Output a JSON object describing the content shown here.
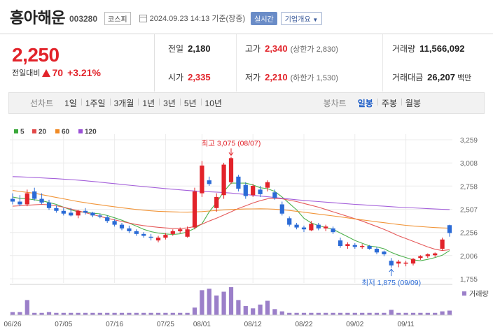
{
  "header": {
    "stock_name": "흥아해운",
    "stock_code": "003280",
    "market": "코스피",
    "datetime": "2024.09.23 14:13 기준(장중)",
    "realtime_label": "실시간",
    "company_info_label": "기업개요"
  },
  "price": {
    "current": "2,250",
    "prev_label": "전일대비",
    "change": "70",
    "change_pct": "+3.21%"
  },
  "stats": {
    "prev_close_label": "전일",
    "prev_close": "2,180",
    "high_label": "고가",
    "high": "2,340",
    "upper_limit": "(상한가 2,830)",
    "volume_label": "거래량",
    "volume": "11,566,092",
    "open_label": "시가",
    "open": "2,335",
    "low_label": "저가",
    "low": "2,210",
    "lower_limit": "(하한가 1,530)",
    "amount_label": "거래대금",
    "amount": "26,207",
    "amount_unit": "백만"
  },
  "period_tabs": {
    "line_label": "선차트",
    "line_items": [
      "1일",
      "1주일",
      "3개월",
      "1년",
      "3년",
      "5년",
      "10년"
    ],
    "candle_label": "봉차트",
    "candle_items": [
      "일봉",
      "주봉",
      "월봉"
    ],
    "active_candle": "일봉"
  },
  "chart_data": {
    "type": "candlestick",
    "legend": [
      {
        "name": "5",
        "color": "#3aa83a"
      },
      {
        "name": "20",
        "color": "#e24848"
      },
      {
        "name": "60",
        "color": "#f08a24"
      },
      {
        "name": "120",
        "color": "#9a4fd6"
      }
    ],
    "y_ticks": [
      "3,259",
      "3,008",
      "2,758",
      "2,507",
      "2,256",
      "2,006",
      "1,755"
    ],
    "ylim": [
      1755,
      3259
    ],
    "x_ticks": [
      "06/26",
      "07/05",
      "07/16",
      "07/25",
      "08/01",
      "08/12",
      "08/22",
      "09/02",
      "09/11"
    ],
    "x_tick_index": [
      0,
      7,
      14,
      21,
      26,
      33,
      40,
      47,
      54
    ],
    "high_annotation": "최고 3,075 (08/07)",
    "high_index": 30,
    "high_value": 3075,
    "low_annotation": "최저 1,875 (09/09)",
    "low_index": 52,
    "low_value": 1875,
    "volume_label": "거래량",
    "candles": [
      {
        "o": 2620,
        "h": 2680,
        "l": 2560,
        "c": 2590
      },
      {
        "o": 2590,
        "h": 2660,
        "l": 2540,
        "c": 2560
      },
      {
        "o": 2560,
        "h": 2720,
        "l": 2540,
        "c": 2680
      },
      {
        "o": 2700,
        "h": 2740,
        "l": 2600,
        "c": 2620
      },
      {
        "o": 2620,
        "h": 2680,
        "l": 2560,
        "c": 2580
      },
      {
        "o": 2580,
        "h": 2610,
        "l": 2500,
        "c": 2520
      },
      {
        "o": 2520,
        "h": 2550,
        "l": 2470,
        "c": 2490
      },
      {
        "o": 2490,
        "h": 2520,
        "l": 2440,
        "c": 2460
      },
      {
        "o": 2470,
        "h": 2520,
        "l": 2430,
        "c": 2440
      },
      {
        "o": 2440,
        "h": 2500,
        "l": 2410,
        "c": 2490
      },
      {
        "o": 2490,
        "h": 2520,
        "l": 2450,
        "c": 2470
      },
      {
        "o": 2470,
        "h": 2480,
        "l": 2420,
        "c": 2440
      },
      {
        "o": 2440,
        "h": 2460,
        "l": 2410,
        "c": 2430
      },
      {
        "o": 2420,
        "h": 2440,
        "l": 2360,
        "c": 2380
      },
      {
        "o": 2380,
        "h": 2400,
        "l": 2320,
        "c": 2340
      },
      {
        "o": 2340,
        "h": 2360,
        "l": 2280,
        "c": 2300
      },
      {
        "o": 2300,
        "h": 2330,
        "l": 2250,
        "c": 2270
      },
      {
        "o": 2270,
        "h": 2290,
        "l": 2220,
        "c": 2240
      },
      {
        "o": 2240,
        "h": 2260,
        "l": 2200,
        "c": 2220
      },
      {
        "o": 2210,
        "h": 2240,
        "l": 2170,
        "c": 2200
      },
      {
        "o": 2170,
        "h": 2220,
        "l": 2150,
        "c": 2200
      },
      {
        "o": 2200,
        "h": 2250,
        "l": 2180,
        "c": 2230
      },
      {
        "o": 2240,
        "h": 2290,
        "l": 2220,
        "c": 2270
      },
      {
        "o": 2270,
        "h": 2310,
        "l": 2250,
        "c": 2290
      },
      {
        "o": 2210,
        "h": 2320,
        "l": 2200,
        "c": 2290
      },
      {
        "o": 2310,
        "h": 2740,
        "l": 2290,
        "c": 2700
      },
      {
        "o": 2680,
        "h": 3030,
        "l": 2640,
        "c": 2980
      },
      {
        "o": 2820,
        "h": 2860,
        "l": 2760,
        "c": 2780
      },
      {
        "o": 2520,
        "h": 2680,
        "l": 2480,
        "c": 2640
      },
      {
        "o": 2660,
        "h": 3010,
        "l": 2620,
        "c": 2990
      },
      {
        "o": 2800,
        "h": 3075,
        "l": 2780,
        "c": 3060
      },
      {
        "o": 2860,
        "h": 2880,
        "l": 2700,
        "c": 2730
      },
      {
        "o": 2770,
        "h": 2800,
        "l": 2620,
        "c": 2650
      },
      {
        "o": 2660,
        "h": 2780,
        "l": 2640,
        "c": 2760
      },
      {
        "o": 2720,
        "h": 2760,
        "l": 2640,
        "c": 2670
      },
      {
        "o": 2740,
        "h": 2820,
        "l": 2700,
        "c": 2800
      },
      {
        "o": 2690,
        "h": 2720,
        "l": 2610,
        "c": 2630
      },
      {
        "o": 2560,
        "h": 2590,
        "l": 2440,
        "c": 2460
      },
      {
        "o": 2410,
        "h": 2430,
        "l": 2320,
        "c": 2340
      },
      {
        "o": 2340,
        "h": 2360,
        "l": 2290,
        "c": 2310
      },
      {
        "o": 2310,
        "h": 2330,
        "l": 2260,
        "c": 2290
      },
      {
        "o": 2280,
        "h": 2380,
        "l": 2270,
        "c": 2350
      },
      {
        "o": 2340,
        "h": 2360,
        "l": 2280,
        "c": 2300
      },
      {
        "o": 2300,
        "h": 2340,
        "l": 2270,
        "c": 2320
      },
      {
        "o": 2300,
        "h": 2320,
        "l": 2240,
        "c": 2260
      },
      {
        "o": 2170,
        "h": 2200,
        "l": 2090,
        "c": 2110
      },
      {
        "o": 2110,
        "h": 2150,
        "l": 2080,
        "c": 2130
      },
      {
        "o": 2120,
        "h": 2140,
        "l": 2080,
        "c": 2100
      },
      {
        "o": 2100,
        "h": 2130,
        "l": 2080,
        "c": 2110
      },
      {
        "o": 2110,
        "h": 2120,
        "l": 2070,
        "c": 2080
      },
      {
        "o": 2080,
        "h": 2100,
        "l": 2020,
        "c": 2040
      },
      {
        "o": 2050,
        "h": 2060,
        "l": 2000,
        "c": 2020
      },
      {
        "o": 1950,
        "h": 1980,
        "l": 1875,
        "c": 1900
      },
      {
        "o": 1920,
        "h": 1960,
        "l": 1880,
        "c": 1940
      },
      {
        "o": 1920,
        "h": 1950,
        "l": 1890,
        "c": 1930
      },
      {
        "o": 1920,
        "h": 1980,
        "l": 1900,
        "c": 1970
      },
      {
        "o": 1980,
        "h": 2010,
        "l": 1960,
        "c": 2000
      },
      {
        "o": 2000,
        "h": 2030,
        "l": 1980,
        "c": 2020
      },
      {
        "o": 2010,
        "h": 2040,
        "l": 1990,
        "c": 2030
      },
      {
        "o": 2080,
        "h": 2200,
        "l": 2060,
        "c": 2180
      },
      {
        "o": 2335,
        "h": 2340,
        "l": 2210,
        "c": 2250
      }
    ],
    "volumes": [
      4,
      4,
      20,
      3,
      3,
      4,
      3,
      3,
      3,
      3,
      3,
      3,
      3,
      3,
      3,
      3,
      3,
      3,
      3,
      3,
      3,
      3,
      3,
      3,
      3,
      10,
      33,
      35,
      26,
      31,
      37,
      20,
      12,
      9,
      14,
      19,
      8,
      5,
      3,
      3,
      3,
      3,
      3,
      3,
      3,
      3,
      3,
      3,
      3,
      3,
      3,
      3,
      7,
      3,
      3,
      3,
      3,
      3,
      3,
      5,
      6
    ],
    "ma": {
      "5": [
        2640,
        2625,
        2620,
        2610,
        2600,
        2580,
        2560,
        2530,
        2500,
        2480,
        2475,
        2465,
        2458,
        2440,
        2415,
        2388,
        2358,
        2325,
        2290,
        2265,
        2250,
        2240,
        2235,
        2242,
        2262,
        2300,
        2350,
        2480,
        2580,
        2700,
        2790,
        2790,
        2790,
        2770,
        2740,
        2730,
        2700,
        2640,
        2570,
        2500,
        2410,
        2360,
        2330,
        2310,
        2290,
        2250,
        2210,
        2170,
        2140,
        2110,
        2100,
        2080,
        2040,
        2010,
        1985,
        1960,
        1950,
        1965,
        1985,
        2010,
        2060
      ],
      "20": [
        2540,
        2545,
        2550,
        2555,
        2560,
        2555,
        2545,
        2530,
        2510,
        2490,
        2470,
        2450,
        2430,
        2410,
        2392,
        2375,
        2358,
        2342,
        2330,
        2320,
        2312,
        2305,
        2300,
        2300,
        2305,
        2320,
        2345,
        2380,
        2410,
        2445,
        2480,
        2515,
        2545,
        2575,
        2600,
        2620,
        2625,
        2620,
        2605,
        2590,
        2570,
        2550,
        2530,
        2505,
        2480,
        2455,
        2430,
        2405,
        2380,
        2350,
        2320,
        2290,
        2255,
        2220,
        2190,
        2160,
        2130,
        2100,
        2075,
        2060,
        2070
      ],
      "60": [
        2710,
        2700,
        2690,
        2680,
        2665,
        2650,
        2635,
        2620,
        2605,
        2590,
        2578,
        2566,
        2555,
        2544,
        2534,
        2524,
        2514,
        2505,
        2497,
        2490,
        2485,
        2482,
        2479,
        2477,
        2476,
        2478,
        2482,
        2488,
        2494,
        2500,
        2505,
        2508,
        2510,
        2511,
        2512,
        2511,
        2508,
        2502,
        2494,
        2485,
        2475,
        2465,
        2455,
        2445,
        2435,
        2425,
        2414,
        2403,
        2392,
        2382,
        2372,
        2362,
        2352,
        2342,
        2333,
        2326,
        2320,
        2314,
        2309,
        2305,
        2303
      ],
      "120": [
        2860,
        2858,
        2855,
        2850,
        2846,
        2842,
        2838,
        2833,
        2828,
        2822,
        2815,
        2808,
        2800,
        2792,
        2784,
        2776,
        2768,
        2760,
        2752,
        2745,
        2738,
        2731,
        2724,
        2717,
        2710,
        2705,
        2700,
        2697,
        2693,
        2688,
        2682,
        2675,
        2667,
        2659,
        2650,
        2642,
        2634,
        2626,
        2618,
        2610,
        2603,
        2596,
        2590,
        2584,
        2578,
        2572,
        2566,
        2560,
        2555,
        2550,
        2545,
        2540,
        2535,
        2530,
        2526,
        2522,
        2518,
        2514,
        2510,
        2506,
        2504
      ]
    }
  }
}
